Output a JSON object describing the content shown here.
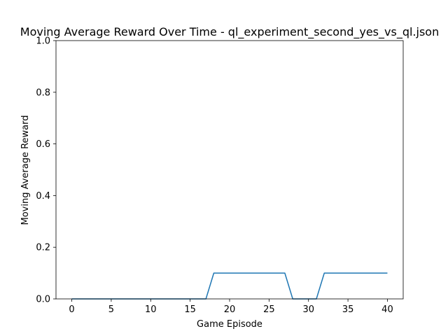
{
  "chart_data": {
    "type": "line",
    "title": "Moving Average Reward Over Time - ql_experiment_second_yes_vs_ql.json",
    "xlabel": "Game Episode",
    "ylabel": "Moving Average Reward",
    "xlim": [
      -2,
      42
    ],
    "ylim": [
      0,
      1.0
    ],
    "xticks": [
      0,
      5,
      10,
      15,
      20,
      25,
      30,
      35,
      40
    ],
    "yticks": [
      0.0,
      0.2,
      0.4,
      0.6,
      0.8,
      1.0
    ],
    "xtick_labels": [
      "0",
      "5",
      "10",
      "15",
      "20",
      "25",
      "30",
      "35",
      "40"
    ],
    "ytick_labels": [
      "0.0",
      "0.2",
      "0.4",
      "0.6",
      "0.8",
      "1.0"
    ],
    "grid": false,
    "series": [
      {
        "color": "#1f77b4",
        "x": [
          0,
          1,
          2,
          3,
          4,
          5,
          6,
          7,
          8,
          9,
          10,
          11,
          12,
          13,
          14,
          15,
          16,
          17,
          18,
          19,
          20,
          21,
          22,
          23,
          24,
          25,
          26,
          27,
          28,
          29,
          30,
          31,
          32,
          33,
          34,
          35,
          36,
          37,
          38,
          39,
          40
        ],
        "y": [
          0,
          0,
          0,
          0,
          0,
          0,
          0,
          0,
          0,
          0,
          0,
          0,
          0,
          0,
          0,
          0,
          0,
          0,
          0.1,
          0.1,
          0.1,
          0.1,
          0.1,
          0.1,
          0.1,
          0.1,
          0.1,
          0.1,
          0,
          0,
          0,
          0,
          0.1,
          0.1,
          0.1,
          0.1,
          0.1,
          0.1,
          0.1,
          0.1,
          0.1
        ]
      }
    ]
  }
}
